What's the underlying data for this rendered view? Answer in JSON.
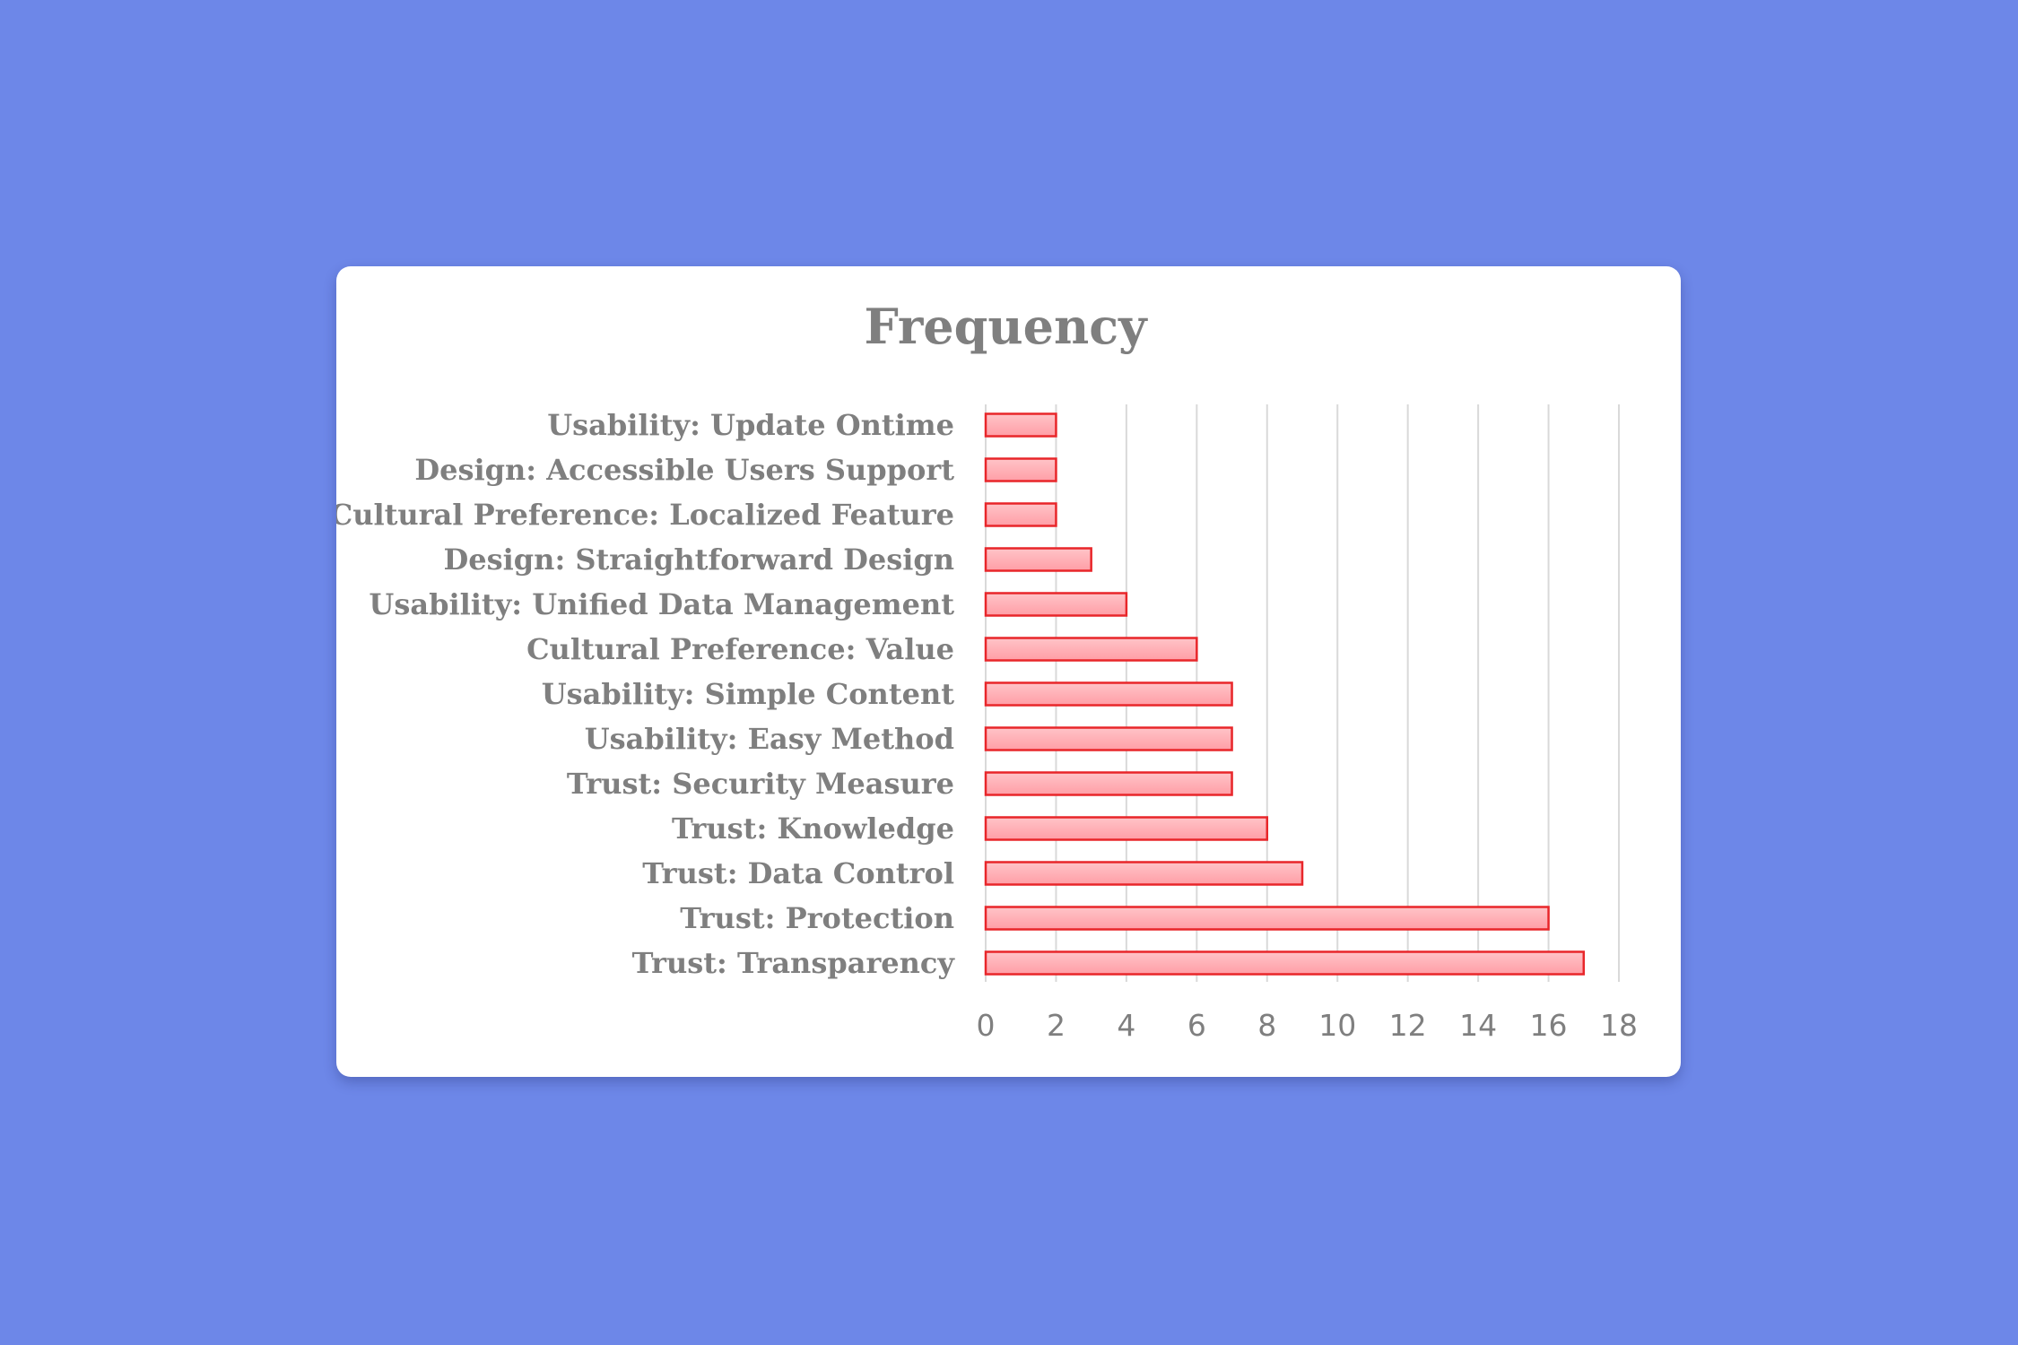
{
  "chart_data": {
    "type": "bar",
    "orientation": "horizontal",
    "title": "Frequency",
    "xlabel": "",
    "ylabel": "",
    "categories": [
      "Usability: Update Ontime",
      "Design: Accessible Users Support",
      "Cultural Preference: Localized Feature",
      "Design: Straightforward Design",
      "Usability: Unified Data Management",
      "Cultural Preference: Value",
      "Usability: Simple Content",
      "Usability: Easy Method",
      "Trust: Security Measure",
      "Trust: Knowledge",
      "Trust: Data Control",
      "Trust: Protection",
      "Trust: Transparency"
    ],
    "values": [
      2,
      2,
      2,
      3,
      4,
      6,
      7,
      7,
      7,
      8,
      9,
      16,
      17
    ],
    "xlim": [
      0,
      18
    ],
    "xticks": [
      "0",
      "2",
      "4",
      "6",
      "8",
      "10",
      "12",
      "14",
      "16",
      "18"
    ],
    "grid": true,
    "legend": "none",
    "colors": {
      "bar_fill_top": "#ffc4c8",
      "bar_fill_bottom": "#ff9ea6",
      "bar_stroke": "#e8262a",
      "gridline": "#d9d9d9",
      "text": "#7f7f7f",
      "background": "#6d87e8",
      "card": "#ffffff"
    }
  }
}
